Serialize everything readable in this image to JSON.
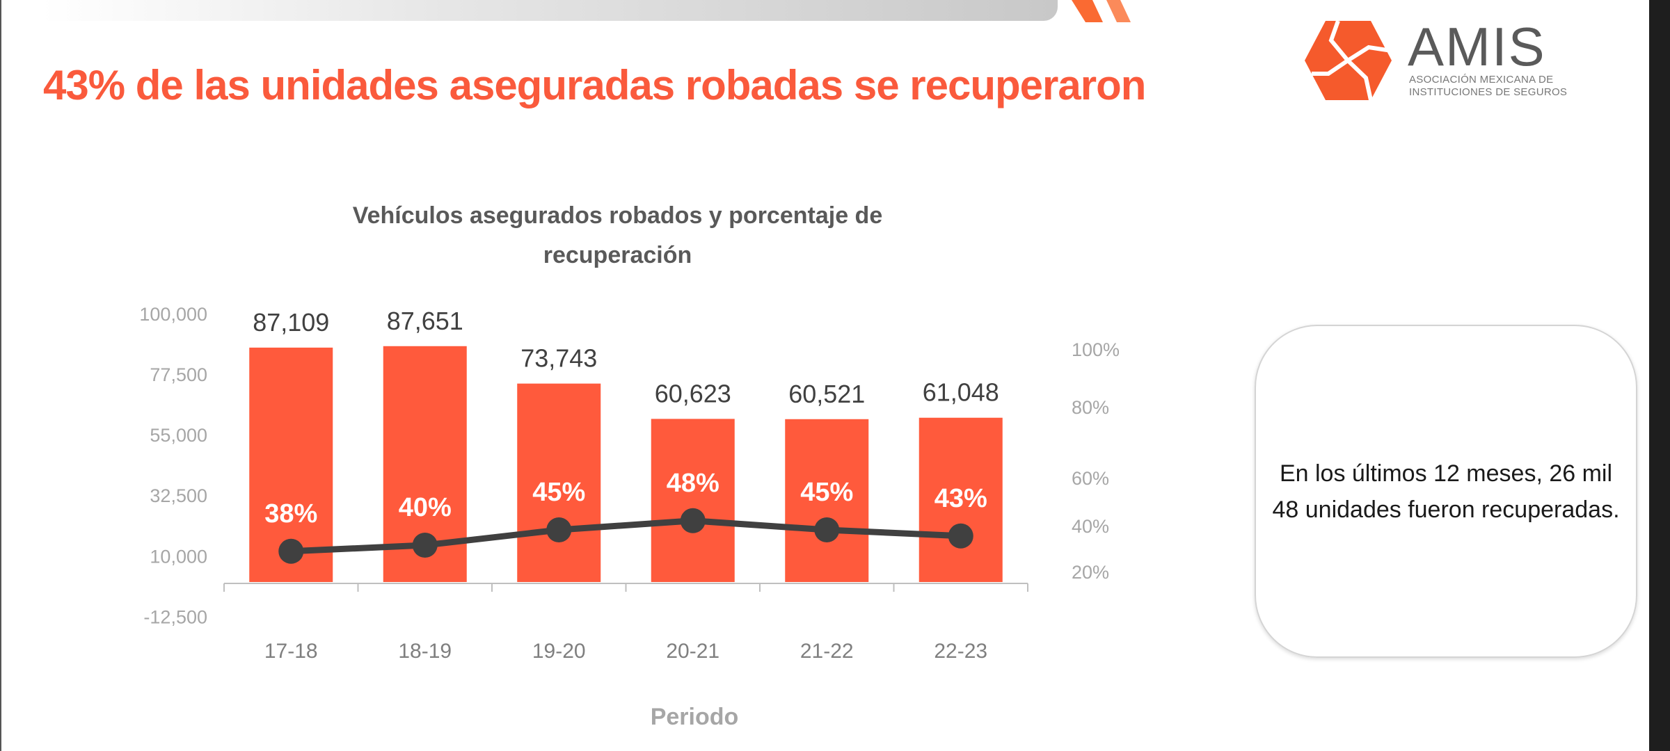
{
  "slide": {
    "title": "43% de las unidades aseguradas robadas se recuperaron",
    "logo": {
      "name": "AMIS",
      "subtitle_line1": "ASOCIACIÓN MEXICANA DE",
      "subtitle_line2": "INSTITUCIONES DE SEGUROS"
    },
    "note": "En los últimos 12 meses, 26 mil 48 unidades fueron recuperadas."
  },
  "colors": {
    "accent": "#fa5a3c",
    "bar": "#ff5a3c",
    "line": "#404040",
    "axis_text": "#a6a6a6"
  },
  "chart_data": {
    "type": "bar+line",
    "title": "Vehículos asegurados robados y porcentaje de recuperación",
    "xlabel": "Periodo",
    "ylabel": "",
    "categories": [
      "17-18",
      "18-19",
      "19-20",
      "20-21",
      "21-22",
      "22-23"
    ],
    "series": [
      {
        "name": "Vehículos asegurados robados",
        "type": "bar",
        "axis": "left",
        "values": [
          87109,
          87651,
          73743,
          60623,
          60521,
          61048
        ],
        "labels": [
          "87,109",
          "87,651",
          "73,743",
          "60,623",
          "60,521",
          "61,048"
        ]
      },
      {
        "name": "Porcentaje de recuperación",
        "type": "line",
        "axis": "right",
        "values": [
          38,
          40,
          45,
          48,
          45,
          43
        ],
        "labels": [
          "38%",
          "40%",
          "45%",
          "48%",
          "45%",
          "43%"
        ]
      }
    ],
    "left_axis": {
      "ticks": [
        "100,000",
        "77,500",
        "55,000",
        "32,500",
        "10,000",
        "-12,500"
      ],
      "ylim": [
        -12500,
        100000
      ]
    },
    "right_axis": {
      "ticks": [
        "100%",
        "80%",
        "60%",
        "40%",
        "20%"
      ]
    },
    "grid": false,
    "legend": "none"
  }
}
